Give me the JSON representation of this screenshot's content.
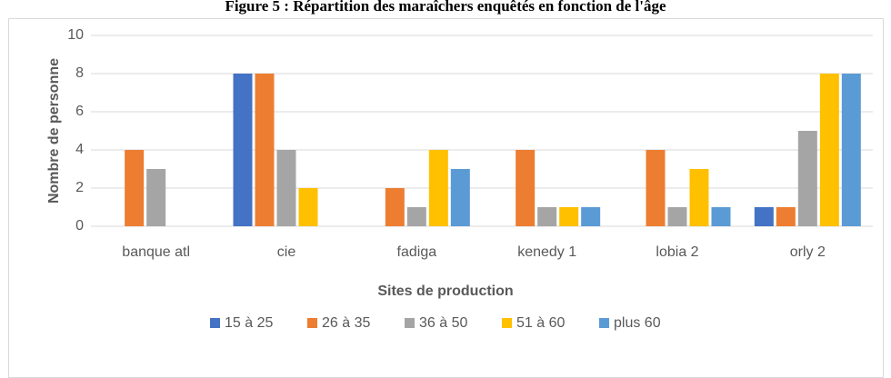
{
  "chart_data": {
    "type": "bar",
    "title": "Figure 5 : Répartition des maraîchers enquêtés en fonction de l'âge",
    "xlabel": "Sites de production",
    "ylabel": "Nombre de personne",
    "categories": [
      "banque atl",
      "cie",
      "fadiga",
      "kenedy 1",
      "lobia 2",
      "orly 2"
    ],
    "series": [
      {
        "name": "15 à 25",
        "color": "#4472c4",
        "values": [
          0,
          8,
          0,
          0,
          0,
          1
        ]
      },
      {
        "name": "26 à 35",
        "color": "#ed7d31",
        "values": [
          4,
          8,
          2,
          4,
          4,
          1
        ]
      },
      {
        "name": "36 à 50",
        "color": "#a5a5a5",
        "values": [
          3,
          4,
          1,
          1,
          1,
          5
        ]
      },
      {
        "name": "51 à 60",
        "color": "#ffc000",
        "values": [
          0,
          2,
          4,
          1,
          3,
          8
        ]
      },
      {
        "name": "plus 60",
        "color": "#5b9bd5",
        "values": [
          0,
          0,
          3,
          1,
          1,
          8
        ]
      }
    ],
    "ylim": [
      0,
      10
    ],
    "yticks": [
      0,
      2,
      4,
      6,
      8,
      10
    ],
    "grid": true,
    "legend": "bottom"
  }
}
